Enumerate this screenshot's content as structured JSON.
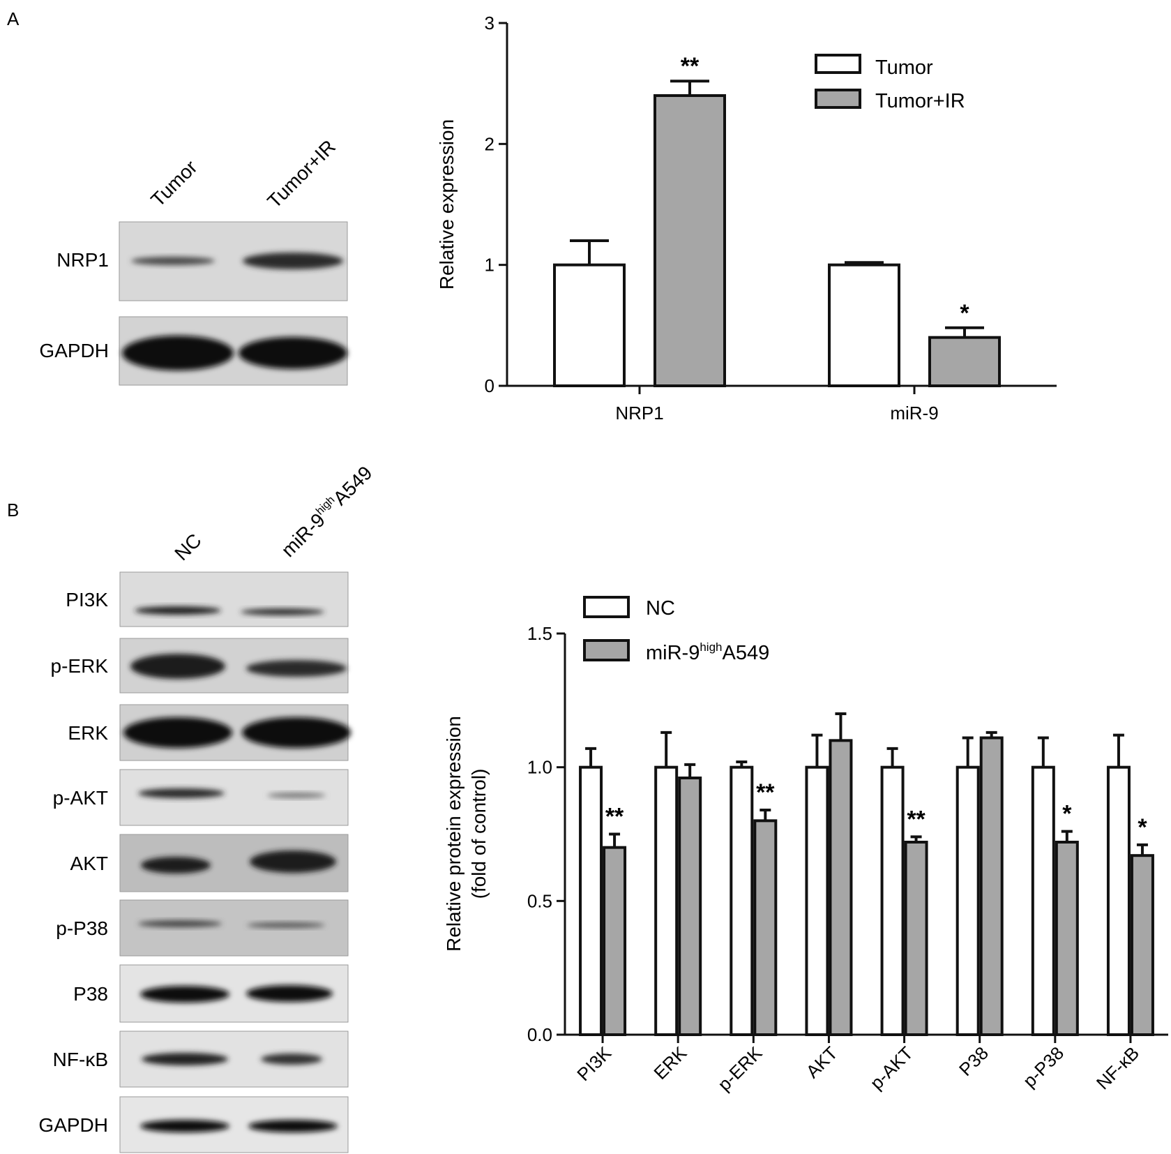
{
  "panels": {
    "a": {
      "letter": "A",
      "blot": {
        "lanes": [
          "Tumor",
          "Tumor+IR"
        ],
        "rows": [
          "NRP1",
          "GAPDH"
        ]
      }
    },
    "b": {
      "letter": "B",
      "blot": {
        "lanes": [
          "NC",
          "miR-9highA549"
        ],
        "lane2_parts": {
          "base": "miR-9",
          "sup": "high",
          "tail": "A549"
        },
        "rows": [
          "PI3K",
          "p-ERK",
          "ERK",
          "p-AKT",
          "AKT",
          "p-P38",
          "P38",
          "NF-κB",
          "GAPDH"
        ]
      }
    }
  },
  "chart_data": [
    {
      "type": "bar",
      "title": "",
      "xlabel": "",
      "ylabel": "Relative expression",
      "ylim": [
        0,
        3
      ],
      "yticks": [
        "0",
        "1",
        "2",
        "3"
      ],
      "categories": [
        "NRP1",
        "miR-9"
      ],
      "series": [
        {
          "name": "Tumor",
          "color": "#ffffff",
          "values": [
            1.0,
            1.0
          ],
          "errors": [
            0.2,
            0.02
          ]
        },
        {
          "name": "Tumor+IR",
          "color": "#a6a6a6",
          "values": [
            2.4,
            0.4
          ],
          "errors": [
            0.12,
            0.08
          ]
        }
      ],
      "significance": [
        "**",
        "*"
      ],
      "legend": "top-right",
      "grid": false
    },
    {
      "type": "bar",
      "title": "",
      "xlabel": "",
      "ylabel": "Relative protein expression",
      "ylabel2": "(fold of control)",
      "ylim": [
        0,
        1.5
      ],
      "yticks": [
        "0.0",
        "0.5",
        "1.0",
        "1.5"
      ],
      "categories": [
        "PI3K",
        "ERK",
        "p-ERK",
        "AKT",
        "p-AKT",
        "P38",
        "p-P38",
        "NF-κB"
      ],
      "series": [
        {
          "name": "NC",
          "color": "#ffffff",
          "values": [
            1.0,
            1.0,
            1.0,
            1.0,
            1.0,
            1.0,
            1.0,
            1.0
          ],
          "errors": [
            0.07,
            0.13,
            0.02,
            0.12,
            0.07,
            0.11,
            0.11,
            0.12
          ]
        },
        {
          "name": "miR-9highA549",
          "name_parts": {
            "base": "miR-9",
            "sup": "high",
            "tail": "A549"
          },
          "color": "#a6a6a6",
          "values": [
            0.7,
            0.96,
            0.8,
            1.1,
            0.72,
            1.11,
            0.72,
            0.67
          ],
          "errors": [
            0.05,
            0.05,
            0.04,
            0.1,
            0.02,
            0.02,
            0.04,
            0.04
          ]
        }
      ],
      "significance": [
        "**",
        "",
        "**",
        "",
        "**",
        "",
        "*",
        "*"
      ],
      "legend": "top-left",
      "grid": false
    }
  ]
}
